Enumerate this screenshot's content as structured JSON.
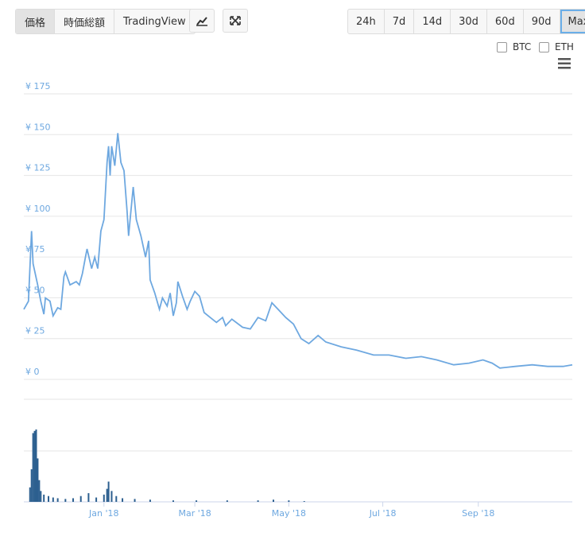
{
  "toolbar": {
    "tabs": [
      "価格",
      "時価総額",
      "TradingView"
    ],
    "ranges": [
      "24h",
      "7d",
      "14d",
      "30d",
      "60d",
      "90d",
      "Max"
    ],
    "toggles": [
      "BTC",
      "ETH"
    ]
  },
  "chart_data": [
    {
      "type": "line",
      "color": "#6ea8e0",
      "grid": true,
      "xlim": [
        -52,
        304
      ],
      "ylim": [
        0,
        175
      ],
      "yticks": [
        {
          "value": 0,
          "label": "¥ 0"
        },
        {
          "value": 25,
          "label": "¥ 25"
        },
        {
          "value": 50,
          "label": "¥ 50"
        },
        {
          "value": 75,
          "label": "¥ 75"
        },
        {
          "value": 100,
          "label": "¥ 100"
        },
        {
          "value": 125,
          "label": "¥ 125"
        },
        {
          "value": 150,
          "label": "¥ 150"
        },
        {
          "value": 175,
          "label": "¥ 175"
        }
      ],
      "x": [
        -52,
        -49,
        -47,
        -46,
        -43,
        -41,
        -39,
        -38,
        -35,
        -33,
        -30,
        -28,
        -26,
        -25,
        -22,
        -18,
        -16,
        -14,
        -12,
        -11,
        -8,
        -6,
        -4,
        -2,
        0,
        2,
        3,
        4,
        5,
        7,
        9,
        11,
        13,
        15,
        16,
        17,
        19,
        21,
        24,
        27,
        29,
        30,
        33,
        36,
        38,
        41,
        43,
        45,
        47,
        48,
        51,
        54,
        56,
        59,
        62,
        65,
        69,
        73,
        77,
        79,
        83,
        90,
        95,
        100,
        105,
        109,
        113,
        118,
        123,
        128,
        133,
        139,
        144,
        154,
        164,
        175,
        185,
        196,
        206,
        216,
        227,
        237,
        246,
        252,
        257,
        267,
        278,
        288,
        298,
        304
      ],
      "values": [
        40,
        45,
        88,
        68,
        55,
        45,
        37,
        47,
        45,
        36,
        41,
        40,
        60,
        63,
        55,
        57,
        55,
        62,
        72,
        77,
        65,
        72,
        65,
        88,
        95,
        130,
        140,
        122,
        140,
        128,
        148,
        130,
        125,
        100,
        85,
        95,
        115,
        95,
        85,
        72,
        82,
        58,
        50,
        40,
        47,
        42,
        50,
        36,
        44,
        57,
        48,
        40,
        45,
        51,
        48,
        38,
        35,
        32,
        35,
        30,
        34,
        29,
        28,
        35,
        33,
        44,
        40,
        35,
        31,
        22,
        19,
        24,
        20,
        17,
        15,
        12,
        12,
        10,
        11,
        9,
        6,
        7,
        9,
        7,
        4,
        5,
        6,
        5,
        5,
        6
      ]
    },
    {
      "type": "bar",
      "color": "#2c5f8f",
      "xlim": [
        -52,
        304
      ],
      "ylim": [
        0,
        100
      ],
      "xticks": [
        {
          "value": 0,
          "label": "Jan '18"
        },
        {
          "value": 59,
          "label": "Mar '18"
        },
        {
          "value": 120,
          "label": "May '18"
        },
        {
          "value": 181,
          "label": "Jul '18"
        },
        {
          "value": 243,
          "label": "Sep '18"
        }
      ],
      "x": [
        -48,
        -47,
        -46,
        -45,
        -44,
        -43,
        -42,
        -41,
        -39,
        -36,
        -33,
        -30,
        -25,
        -20,
        -15,
        -10,
        -5,
        0,
        2,
        3,
        5,
        8,
        12,
        20,
        30,
        45,
        60,
        80,
        100,
        110,
        120,
        130
      ],
      "values": [
        20,
        45,
        95,
        98,
        100,
        60,
        30,
        15,
        10,
        8,
        6,
        5,
        4,
        5,
        8,
        12,
        6,
        10,
        18,
        28,
        15,
        8,
        5,
        4,
        3,
        2,
        2,
        2,
        2,
        3,
        2,
        1
      ]
    }
  ]
}
